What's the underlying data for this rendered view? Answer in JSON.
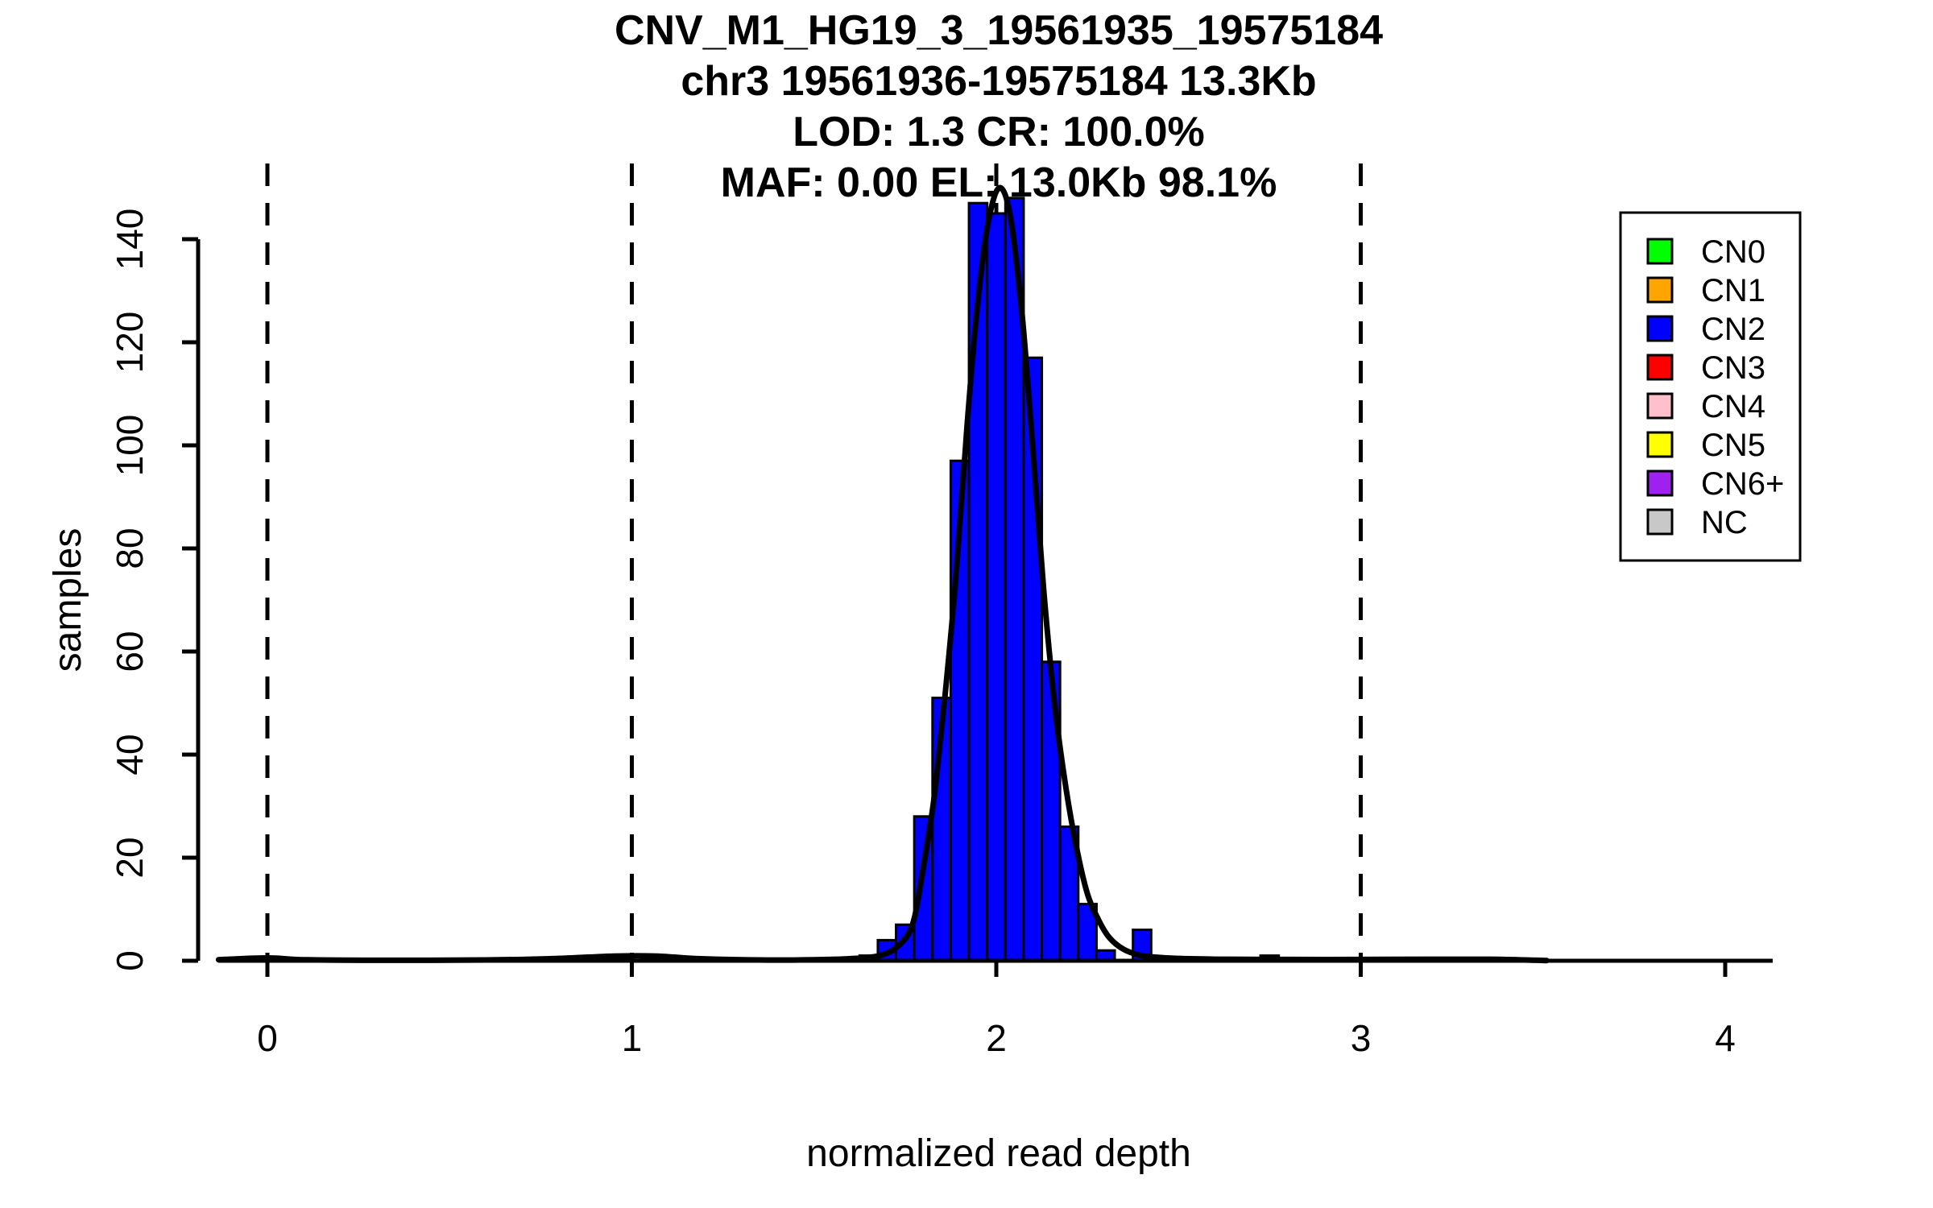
{
  "chart_data": {
    "type": "bar",
    "subtype": "histogram-with-density",
    "title_lines": [
      "CNV_M1_HG19_3_19561935_19575184",
      "chr3 19561936-19575184 13.3Kb",
      "LOD: 1.3 CR: 100.0%",
      "MAF: 0.00 EL: 13.0Kb 98.1%"
    ],
    "xlabel": "normalized read depth",
    "ylabel": "samples",
    "x_ticks": [
      "0",
      "1",
      "2",
      "3",
      "4"
    ],
    "x_tick_values": [
      0,
      1,
      2,
      3,
      4
    ],
    "y_ticks": [
      "0",
      "20",
      "40",
      "60",
      "80",
      "100",
      "120",
      "140"
    ],
    "y_tick_values": [
      0,
      20,
      40,
      60,
      80,
      100,
      120,
      140
    ],
    "xlim": [
      -0.135,
      4.13
    ],
    "ylim": [
      0,
      155
    ],
    "grid": false,
    "guide_lines_x": [
      0,
      1,
      2,
      3
    ],
    "bin_width": 0.05,
    "bars": [
      {
        "center": 1.05,
        "count": 1,
        "cn": "CN2"
      },
      {
        "center": 1.65,
        "count": 1,
        "cn": "CN2"
      },
      {
        "center": 1.7,
        "count": 4,
        "cn": "CN2"
      },
      {
        "center": 1.75,
        "count": 7,
        "cn": "CN2"
      },
      {
        "center": 1.8,
        "count": 28,
        "cn": "CN2"
      },
      {
        "center": 1.85,
        "count": 51,
        "cn": "CN2"
      },
      {
        "center": 1.9,
        "count": 97,
        "cn": "CN2"
      },
      {
        "center": 1.95,
        "count": 147,
        "cn": "CN2"
      },
      {
        "center": 2.0,
        "count": 145,
        "cn": "CN2"
      },
      {
        "center": 2.05,
        "count": 148,
        "cn": "CN2"
      },
      {
        "center": 2.1,
        "count": 117,
        "cn": "CN2"
      },
      {
        "center": 2.15,
        "count": 58,
        "cn": "CN2"
      },
      {
        "center": 2.2,
        "count": 26,
        "cn": "CN2"
      },
      {
        "center": 2.25,
        "count": 11,
        "cn": "CN2"
      },
      {
        "center": 2.3,
        "count": 2,
        "cn": "CN2"
      },
      {
        "center": 2.4,
        "count": 6,
        "cn": "CN2"
      },
      {
        "center": 2.75,
        "count": 1,
        "cn": "CN3"
      }
    ],
    "density_curve": [
      [
        -0.134,
        0.2
      ],
      [
        0.0,
        0.55
      ],
      [
        0.1,
        0.2
      ],
      [
        0.3,
        0.1
      ],
      [
        0.6,
        0.15
      ],
      [
        0.8,
        0.45
      ],
      [
        0.95,
        0.9
      ],
      [
        1.07,
        0.9
      ],
      [
        1.18,
        0.4
      ],
      [
        1.35,
        0.15
      ],
      [
        1.5,
        0.2
      ],
      [
        1.6,
        0.4
      ],
      [
        1.68,
        1.0
      ],
      [
        1.73,
        2.8
      ],
      [
        1.77,
        7
      ],
      [
        1.8,
        18
      ],
      [
        1.83,
        32
      ],
      [
        1.86,
        52
      ],
      [
        1.89,
        75
      ],
      [
        1.92,
        104
      ],
      [
        1.95,
        128
      ],
      [
        1.98,
        144
      ],
      [
        2.01,
        150
      ],
      [
        2.04,
        144
      ],
      [
        2.07,
        126
      ],
      [
        2.1,
        100
      ],
      [
        2.13,
        72
      ],
      [
        2.16,
        50
      ],
      [
        2.19,
        34
      ],
      [
        2.22,
        22
      ],
      [
        2.25,
        13
      ],
      [
        2.28,
        8
      ],
      [
        2.31,
        4.5
      ],
      [
        2.35,
        2.2
      ],
      [
        2.4,
        1.0
      ],
      [
        2.48,
        0.5
      ],
      [
        2.6,
        0.3
      ],
      [
        2.8,
        0.25
      ],
      [
        3.0,
        0.25
      ],
      [
        3.2,
        0.3
      ],
      [
        3.35,
        0.3
      ],
      [
        3.45,
        0.15
      ],
      [
        3.51,
        0.05
      ]
    ],
    "legend": {
      "position": "top-right",
      "items": [
        {
          "label": "CN0",
          "color": "#00FF00"
        },
        {
          "label": "CN1",
          "color": "#FFA500"
        },
        {
          "label": "CN2",
          "color": "#0000FF"
        },
        {
          "label": "CN3",
          "color": "#FF0000"
        },
        {
          "label": "CN4",
          "color": "#FFC0CB"
        },
        {
          "label": "CN5",
          "color": "#FFFF00"
        },
        {
          "label": "CN6+",
          "color": "#A020F0"
        },
        {
          "label": "NC",
          "color": "#C8C8C8"
        }
      ]
    },
    "colors": {
      "bar_fill_cn2": "#0000FF",
      "bar_fill_cn3": "#FF0000",
      "bar_border": "#000000",
      "density_curve": "#000000",
      "guide_line": "#000000",
      "axis": "#000000",
      "background": "#FFFFFF"
    }
  }
}
